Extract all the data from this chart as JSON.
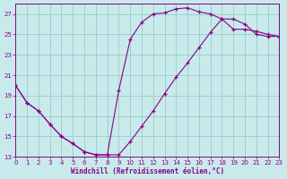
{
  "xlabel": "Windchill (Refroidissement éolien,°C)",
  "bg_color": "#c8eaea",
  "line_color": "#880088",
  "grid_color": "#99cccc",
  "xlim": [
    0,
    23
  ],
  "ylim": [
    13,
    28
  ],
  "xticks": [
    0,
    1,
    2,
    3,
    4,
    5,
    6,
    7,
    8,
    9,
    10,
    11,
    12,
    13,
    14,
    15,
    16,
    17,
    18,
    19,
    20,
    21,
    22,
    23
  ],
  "yticks": [
    13,
    15,
    17,
    19,
    21,
    23,
    25,
    27
  ],
  "curve1_x": [
    0,
    1,
    2,
    3,
    4,
    5,
    6,
    7,
    8,
    9,
    10,
    11,
    12,
    13,
    14,
    15,
    16,
    17,
    18,
    19,
    20,
    21,
    22,
    23
  ],
  "curve1_y": [
    20.0,
    18.3,
    17.5,
    16.2,
    15.0,
    14.3,
    13.5,
    13.2,
    13.2,
    13.2,
    14.5,
    16.0,
    17.5,
    19.2,
    20.8,
    22.2,
    23.7,
    25.2,
    26.5,
    26.5,
    26.0,
    25.0,
    24.8,
    24.8
  ],
  "curve2_x": [
    0,
    1,
    2,
    3,
    4,
    5,
    6,
    7,
    8,
    9,
    10,
    11,
    12,
    13,
    14,
    15,
    16,
    17,
    18,
    19,
    20,
    21,
    22,
    23
  ],
  "curve2_y": [
    20.0,
    18.3,
    17.5,
    16.2,
    15.0,
    14.3,
    13.5,
    13.2,
    13.2,
    19.5,
    24.5,
    26.2,
    27.0,
    27.1,
    27.5,
    27.6,
    27.2,
    27.0,
    26.5,
    25.5,
    25.5,
    25.3,
    25.0,
    24.8
  ]
}
